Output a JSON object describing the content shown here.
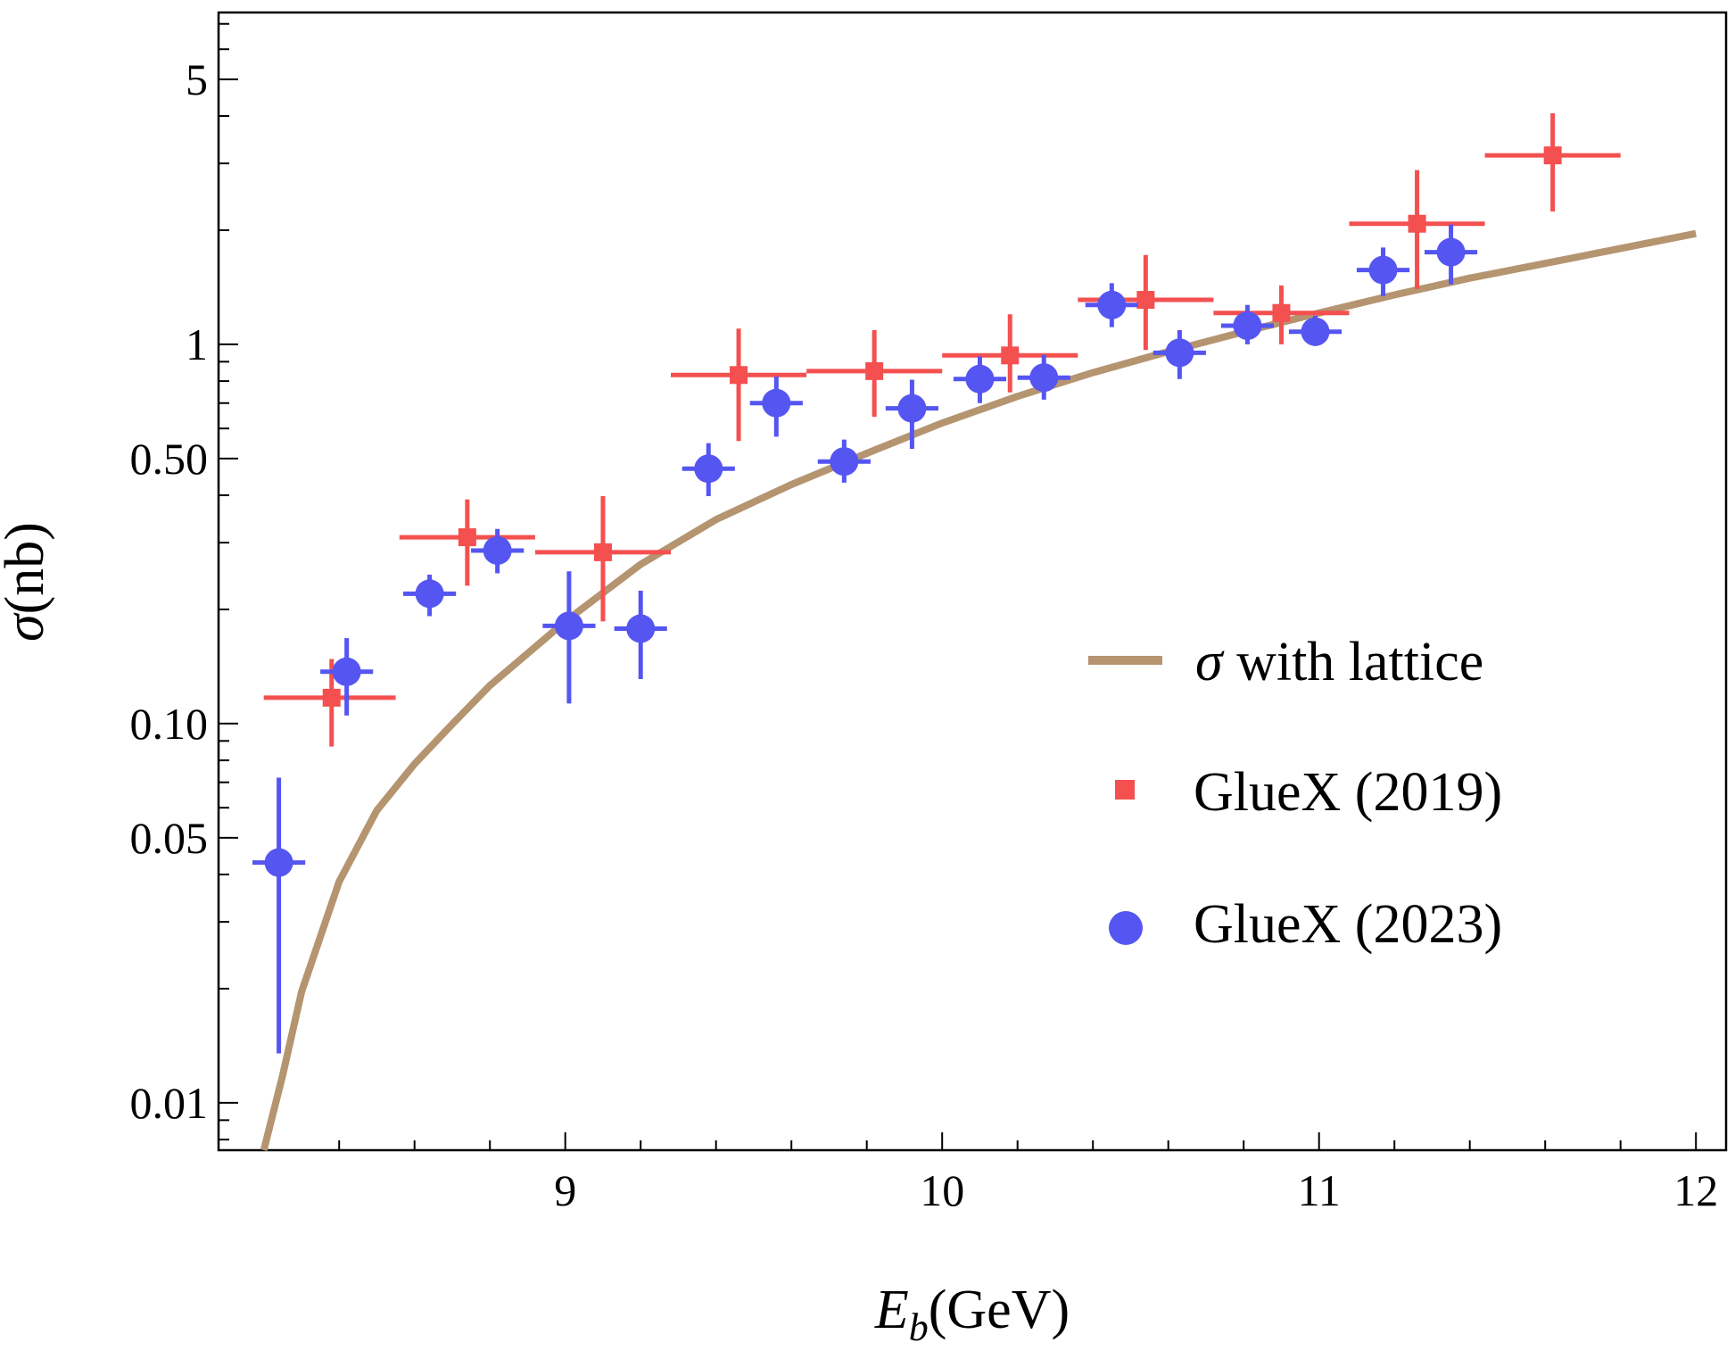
{
  "chart_data": {
    "type": "scatter",
    "xlabel": "E_b(GeV)",
    "ylabel": "σ(nb)",
    "xaxis": {
      "min": 8.08,
      "max": 12.08,
      "yscale": "log"
    },
    "ylim": [
      0.0075,
      7.5
    ],
    "x_ticks": [
      {
        "v": 9,
        "label": "9"
      },
      {
        "v": 10,
        "label": "10"
      },
      {
        "v": 11,
        "label": "11"
      },
      {
        "v": 12,
        "label": "12"
      }
    ],
    "y_ticks": [
      {
        "v": 0.01,
        "label": "0.01"
      },
      {
        "v": 0.05,
        "label": "0.05"
      },
      {
        "v": 0.1,
        "label": "0.10"
      },
      {
        "v": 0.5,
        "label": "0.50"
      },
      {
        "v": 1,
        "label": "1"
      },
      {
        "v": 5,
        "label": "5"
      }
    ],
    "legend": {
      "position": "right-middle",
      "items": [
        {
          "label": "σ with lattice",
          "marker": "line",
          "color": "#b59470"
        },
        {
          "label": "GlueX (2019)",
          "marker": "square",
          "color": "#f45050"
        },
        {
          "label": "GlueX (2023)",
          "marker": "circle",
          "color": "#5555f2"
        }
      ]
    },
    "curve": {
      "name": "σ with lattice",
      "color": "#b59470",
      "points": [
        [
          8.2,
          0.0075
        ],
        [
          8.25,
          0.0118
        ],
        [
          8.3,
          0.0196
        ],
        [
          8.4,
          0.0383
        ],
        [
          8.5,
          0.059
        ],
        [
          8.6,
          0.0783
        ],
        [
          8.7,
          0.0996
        ],
        [
          8.8,
          0.126
        ],
        [
          9.0,
          0.186
        ],
        [
          9.2,
          0.263
        ],
        [
          9.4,
          0.345
        ],
        [
          9.6,
          0.427
        ],
        [
          9.8,
          0.516
        ],
        [
          10.0,
          0.62
        ],
        [
          10.2,
          0.729
        ],
        [
          10.4,
          0.842
        ],
        [
          10.6,
          0.957
        ],
        [
          10.8,
          1.079
        ],
        [
          11.0,
          1.21
        ],
        [
          11.2,
          1.35
        ],
        [
          11.4,
          1.495
        ],
        [
          11.6,
          1.635
        ],
        [
          11.8,
          1.79
        ],
        [
          12.0,
          1.96
        ]
      ]
    },
    "series": [
      {
        "name": "GlueX (2019)",
        "marker": "square",
        "color": "#f45050",
        "points": [
          {
            "x": 8.38,
            "y": 0.117,
            "xlo": 8.2,
            "xhi": 8.55,
            "ylo": 0.087,
            "yhi": 0.148
          },
          {
            "x": 8.74,
            "y": 0.31,
            "xlo": 8.56,
            "xhi": 8.92,
            "ylo": 0.231,
            "yhi": 0.39
          },
          {
            "x": 9.1,
            "y": 0.283,
            "xlo": 8.92,
            "xhi": 9.28,
            "ylo": 0.186,
            "yhi": 0.398
          },
          {
            "x": 9.46,
            "y": 0.83,
            "xlo": 9.28,
            "xhi": 9.64,
            "ylo": 0.556,
            "yhi": 1.1
          },
          {
            "x": 9.82,
            "y": 0.85,
            "xlo": 9.64,
            "xhi": 10.0,
            "ylo": 0.644,
            "yhi": 1.09
          },
          {
            "x": 10.18,
            "y": 0.935,
            "xlo": 10.0,
            "xhi": 10.36,
            "ylo": 0.747,
            "yhi": 1.2
          },
          {
            "x": 10.54,
            "y": 1.31,
            "xlo": 10.36,
            "xhi": 10.72,
            "ylo": 0.966,
            "yhi": 1.72
          },
          {
            "x": 10.9,
            "y": 1.21,
            "xlo": 10.72,
            "xhi": 11.08,
            "ylo": 1.0,
            "yhi": 1.43
          },
          {
            "x": 11.26,
            "y": 2.08,
            "xlo": 11.08,
            "xhi": 11.44,
            "ylo": 1.4,
            "yhi": 2.88
          },
          {
            "x": 11.62,
            "y": 3.15,
            "xlo": 11.44,
            "xhi": 11.8,
            "ylo": 2.24,
            "yhi": 4.07
          }
        ]
      },
      {
        "name": "GlueX (2023)",
        "marker": "circle",
        "color": "#5555f2",
        "points": [
          {
            "x": 8.24,
            "y": 0.043,
            "xlo": 8.17,
            "xhi": 8.31,
            "ylo": 0.0135,
            "yhi": 0.072
          },
          {
            "x": 8.42,
            "y": 0.137,
            "xlo": 8.35,
            "xhi": 8.49,
            "ylo": 0.105,
            "yhi": 0.168
          },
          {
            "x": 8.64,
            "y": 0.22,
            "xlo": 8.57,
            "xhi": 8.71,
            "ylo": 0.192,
            "yhi": 0.247
          },
          {
            "x": 8.82,
            "y": 0.286,
            "xlo": 8.75,
            "xhi": 8.89,
            "ylo": 0.249,
            "yhi": 0.326
          },
          {
            "x": 9.01,
            "y": 0.181,
            "xlo": 8.94,
            "xhi": 9.08,
            "ylo": 0.113,
            "yhi": 0.252
          },
          {
            "x": 9.2,
            "y": 0.178,
            "xlo": 9.13,
            "xhi": 9.27,
            "ylo": 0.131,
            "yhi": 0.224
          },
          {
            "x": 9.38,
            "y": 0.47,
            "xlo": 9.31,
            "xhi": 9.45,
            "ylo": 0.398,
            "yhi": 0.549
          },
          {
            "x": 9.56,
            "y": 0.7,
            "xlo": 9.49,
            "xhi": 9.63,
            "ylo": 0.571,
            "yhi": 0.823
          },
          {
            "x": 9.74,
            "y": 0.491,
            "xlo": 9.67,
            "xhi": 9.81,
            "ylo": 0.432,
            "yhi": 0.561
          },
          {
            "x": 9.92,
            "y": 0.678,
            "xlo": 9.85,
            "xhi": 9.99,
            "ylo": 0.53,
            "yhi": 0.807
          },
          {
            "x": 10.1,
            "y": 0.81,
            "xlo": 10.03,
            "xhi": 10.17,
            "ylo": 0.7,
            "yhi": 0.93
          },
          {
            "x": 10.27,
            "y": 0.817,
            "xlo": 10.2,
            "xhi": 10.34,
            "ylo": 0.715,
            "yhi": 0.938
          },
          {
            "x": 10.45,
            "y": 1.27,
            "xlo": 10.38,
            "xhi": 10.52,
            "ylo": 1.11,
            "yhi": 1.45
          },
          {
            "x": 10.63,
            "y": 0.95,
            "xlo": 10.56,
            "xhi": 10.7,
            "ylo": 0.81,
            "yhi": 1.09
          },
          {
            "x": 10.81,
            "y": 1.12,
            "xlo": 10.74,
            "xhi": 10.88,
            "ylo": 1.0,
            "yhi": 1.27
          },
          {
            "x": 10.99,
            "y": 1.08,
            "xlo": 10.92,
            "xhi": 11.06,
            "ylo": 0.99,
            "yhi": 1.19
          },
          {
            "x": 11.17,
            "y": 1.57,
            "xlo": 11.1,
            "xhi": 11.24,
            "ylo": 1.34,
            "yhi": 1.8
          },
          {
            "x": 11.35,
            "y": 1.75,
            "xlo": 11.28,
            "xhi": 11.42,
            "ylo": 1.44,
            "yhi": 2.07
          }
        ]
      }
    ]
  }
}
